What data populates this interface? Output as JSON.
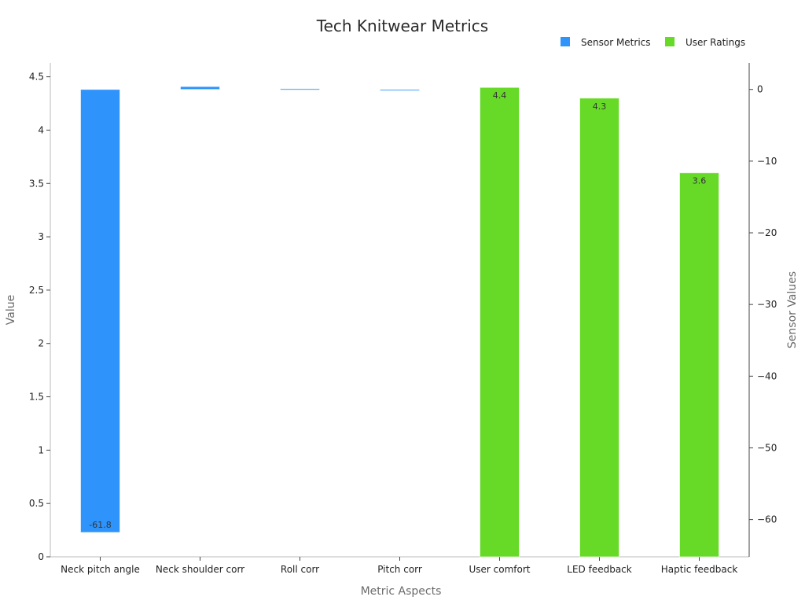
{
  "chart_data": {
    "type": "bar",
    "title": "Tech Knitwear Metrics",
    "xlabel": "Metric Aspects",
    "ylabel": "Value",
    "y2label": "Sensor Values",
    "categories": [
      "Neck pitch angle",
      "Neck shoulder corr",
      "Roll corr",
      "Pitch corr",
      "User comfort",
      "LED feedback",
      "Haptic feedback"
    ],
    "ylim": [
      0,
      4.63
    ],
    "y2lim": [
      -65.2,
      3.7
    ],
    "yticks": [
      0,
      0.5,
      1,
      1.5,
      2,
      2.5,
      3,
      3.5,
      4,
      4.5
    ],
    "ytick_labels": [
      "0",
      "0.5",
      "1",
      "1.5",
      "2",
      "2.5",
      "3",
      "3.5",
      "4",
      "4.5"
    ],
    "y2ticks": [
      0,
      -10,
      -20,
      -30,
      -40,
      -50,
      -60
    ],
    "y2tick_labels": [
      "0",
      "−10",
      "−20",
      "−30",
      "−40",
      "−50",
      "−60"
    ],
    "legend_position": "top-right",
    "grid": false,
    "series": [
      {
        "name": "Sensor Metrics",
        "axis": "right",
        "color": "#2e93fa",
        "values": [
          -61.8,
          0.4,
          0.1,
          -0.1,
          null,
          null,
          null
        ],
        "labels": [
          "-61.8",
          "",
          "",
          "",
          "",
          "",
          ""
        ]
      },
      {
        "name": "User Ratings",
        "axis": "left",
        "color": "#66da26",
        "values": [
          null,
          null,
          null,
          null,
          4.4,
          4.3,
          3.6
        ],
        "labels": [
          "",
          "",
          "",
          "",
          "4.4",
          "4.3",
          "3.6"
        ]
      }
    ]
  }
}
